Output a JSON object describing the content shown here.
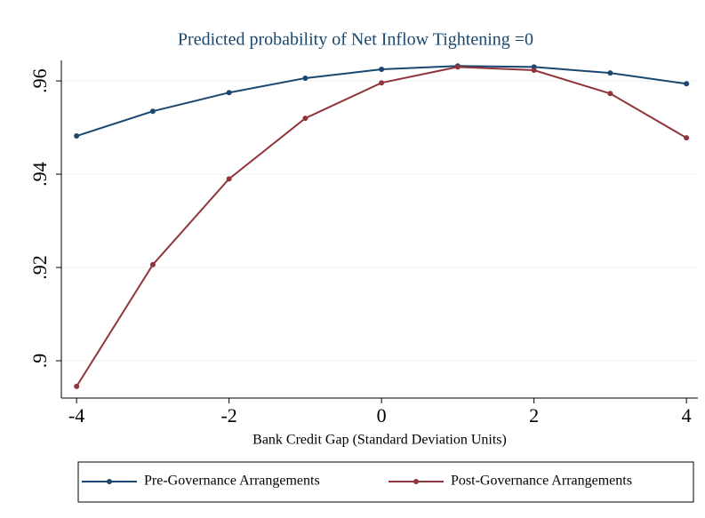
{
  "chart_data": {
    "type": "line",
    "title": "Predicted probability of Net Inflow Tightening =0",
    "x_label": "Bank Credit Gap (Standard Deviation Units)",
    "x": [
      -4,
      -3,
      -2,
      -1,
      0,
      1,
      2,
      3,
      4
    ],
    "series": [
      {
        "name": "Pre-Governance Arrangements",
        "color": "#1a476f",
        "values": [
          0.9482,
          0.9535,
          0.9575,
          0.9606,
          0.9625,
          0.9632,
          0.963,
          0.9617,
          0.9594
        ]
      },
      {
        "name": "Post-Governance Arrangements",
        "color": "#90353b",
        "values": [
          0.8945,
          0.9206,
          0.939,
          0.952,
          0.9596,
          0.963,
          0.9623,
          0.9573,
          0.9478
        ]
      }
    ],
    "xlim": [
      -4.2,
      4.15
    ],
    "xticks": [
      -4,
      -2,
      0,
      2,
      4
    ],
    "ylim": [
      0.892,
      0.9644
    ],
    "yticks": [
      {
        "value": 0.9,
        "label": ".9"
      },
      {
        "value": 0.92,
        "label": ".92"
      },
      {
        "value": 0.94,
        "label": ".94"
      },
      {
        "value": 0.96,
        "label": ".96"
      }
    ],
    "grid": true,
    "legend_position": "bottom"
  }
}
